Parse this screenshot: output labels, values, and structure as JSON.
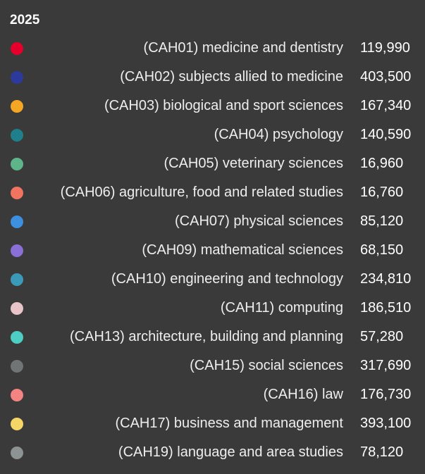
{
  "tooltip": {
    "title": "2025",
    "items": [
      {
        "label": "(CAH01) medicine and dentistry",
        "value": "119,990",
        "color": "#e4002b"
      },
      {
        "label": "(CAH02) subjects allied to medicine",
        "value": "403,500",
        "color": "#2b3a9c"
      },
      {
        "label": "(CAH03) biological and sport sciences",
        "value": "167,340",
        "color": "#f5a623"
      },
      {
        "label": "(CAH04) psychology",
        "value": "140,590",
        "color": "#1f7f8a"
      },
      {
        "label": "(CAH05) veterinary sciences",
        "value": "16,960",
        "color": "#5fb58a"
      },
      {
        "label": "(CAH06) agriculture, food and related studies",
        "value": "16,760",
        "color": "#f2735f"
      },
      {
        "label": "(CAH07) physical sciences",
        "value": "85,120",
        "color": "#3d8fe0"
      },
      {
        "label": "(CAH09) mathematical sciences",
        "value": "68,150",
        "color": "#8a6fd6"
      },
      {
        "label": "(CAH10) engineering and technology",
        "value": "234,810",
        "color": "#3b9ab8"
      },
      {
        "label": "(CAH11) computing",
        "value": "186,510",
        "color": "#e8c4c8"
      },
      {
        "label": "(CAH13) architecture, building and planning",
        "value": "57,280",
        "color": "#4ecdc4"
      },
      {
        "label": "(CAH15) social sciences",
        "value": "317,690",
        "color": "#6e7574"
      },
      {
        "label": "(CAH16) law",
        "value": "176,730",
        "color": "#f38482"
      },
      {
        "label": "(CAH17) business and management",
        "value": "393,100",
        "color": "#f5d565"
      },
      {
        "label": "(CAH19) language and area studies",
        "value": "78,120",
        "color": "#8d9292"
      }
    ]
  }
}
